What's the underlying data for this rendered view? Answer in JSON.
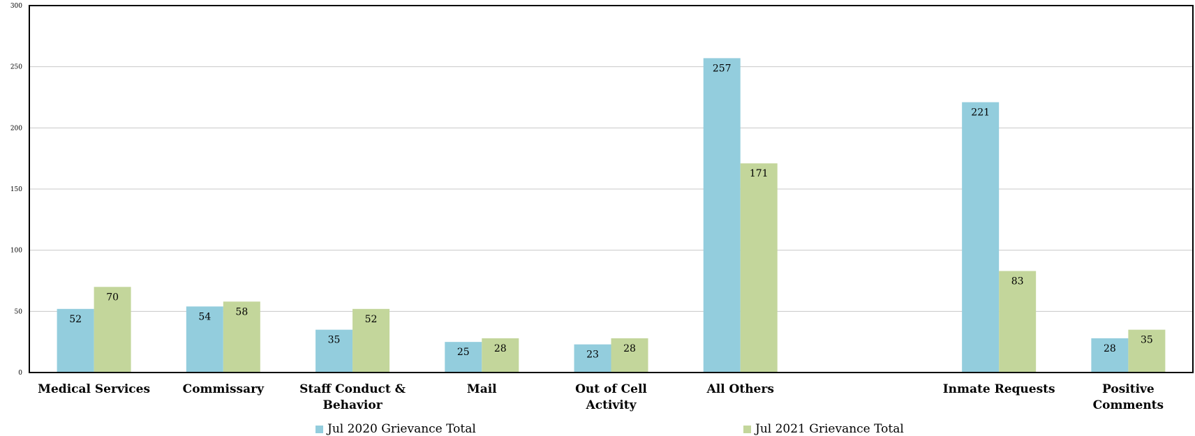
{
  "chart_data": {
    "type": "bar",
    "categories": [
      [
        "Medical Services"
      ],
      [
        "Commissary"
      ],
      [
        "Staff Conduct &",
        "Behavior"
      ],
      [
        "Mail"
      ],
      [
        "Out of Cell",
        "Activity"
      ],
      [
        "All Others"
      ],
      [],
      [
        "Inmate Requests"
      ],
      [
        "Positive",
        "Comments"
      ]
    ],
    "series": [
      {
        "name": "Jul 2020 Grievance Total",
        "color": "#93cddd",
        "values": [
          52,
          54,
          35,
          25,
          23,
          257,
          null,
          221,
          28
        ]
      },
      {
        "name": "Jul 2021 Grievance Total",
        "color": "#c3d69b",
        "values": [
          70,
          58,
          52,
          28,
          28,
          171,
          null,
          83,
          35
        ]
      }
    ],
    "ylim": [
      0,
      300
    ],
    "yticks": [
      0,
      50,
      100,
      150,
      200,
      250,
      300
    ],
    "grid": true,
    "legend_position": "bottom",
    "title": "",
    "xlabel": "",
    "ylabel": ""
  }
}
